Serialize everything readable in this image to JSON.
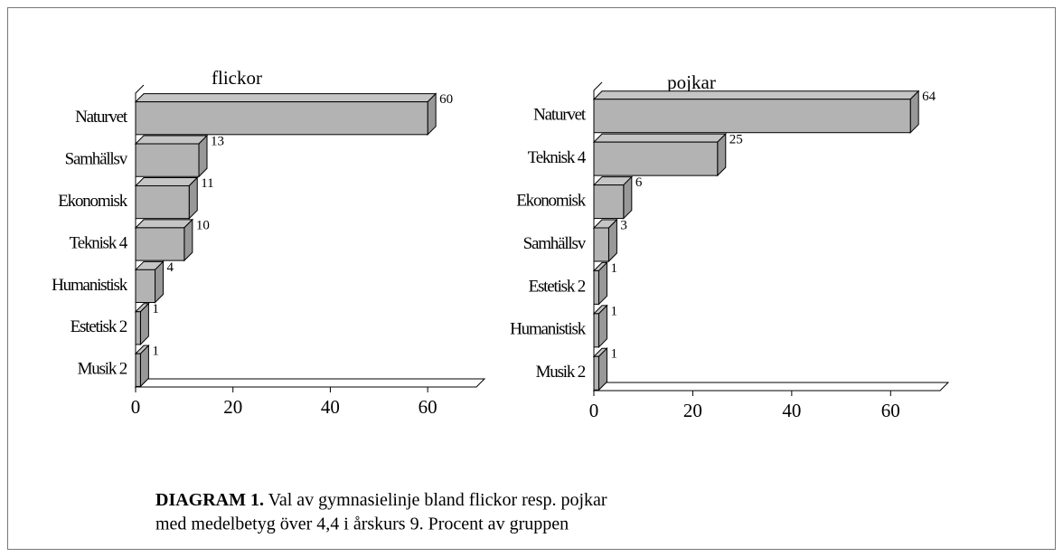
{
  "chart_data": [
    {
      "type": "bar3d",
      "orientation": "horizontal",
      "title": "flickor",
      "categories": [
        "Naturvet",
        "Samhällsv",
        "Ekonomisk",
        "Teknisk 4",
        "Humanistisk",
        "Estetisk 2",
        "Musik 2"
      ],
      "values": [
        60,
        13,
        11,
        10,
        4,
        1,
        1
      ],
      "color": "#b3b3b3",
      "xlim": [
        0,
        70
      ],
      "xticks": [
        0,
        20,
        40,
        60
      ]
    },
    {
      "type": "bar3d",
      "orientation": "horizontal",
      "title": "pojkar",
      "categories": [
        "Naturvet",
        "Teknisk 4",
        "Ekonomisk",
        "Samhällsv",
        "Estetisk 2",
        "Humanistisk",
        "Musik 2"
      ],
      "values": [
        64,
        25,
        6,
        3,
        1,
        1,
        1
      ],
      "color": "#b3b3b3",
      "xlim": [
        0,
        70
      ],
      "xticks": [
        0,
        20,
        40,
        60
      ]
    }
  ],
  "caption": {
    "label": "DIAGRAM 1.",
    "lines": [
      "Val av gymnasielinje bland flickor resp. pojkar",
      "med medelbetyg över 4,4 i årskurs 9. Procent av gruppen"
    ]
  }
}
